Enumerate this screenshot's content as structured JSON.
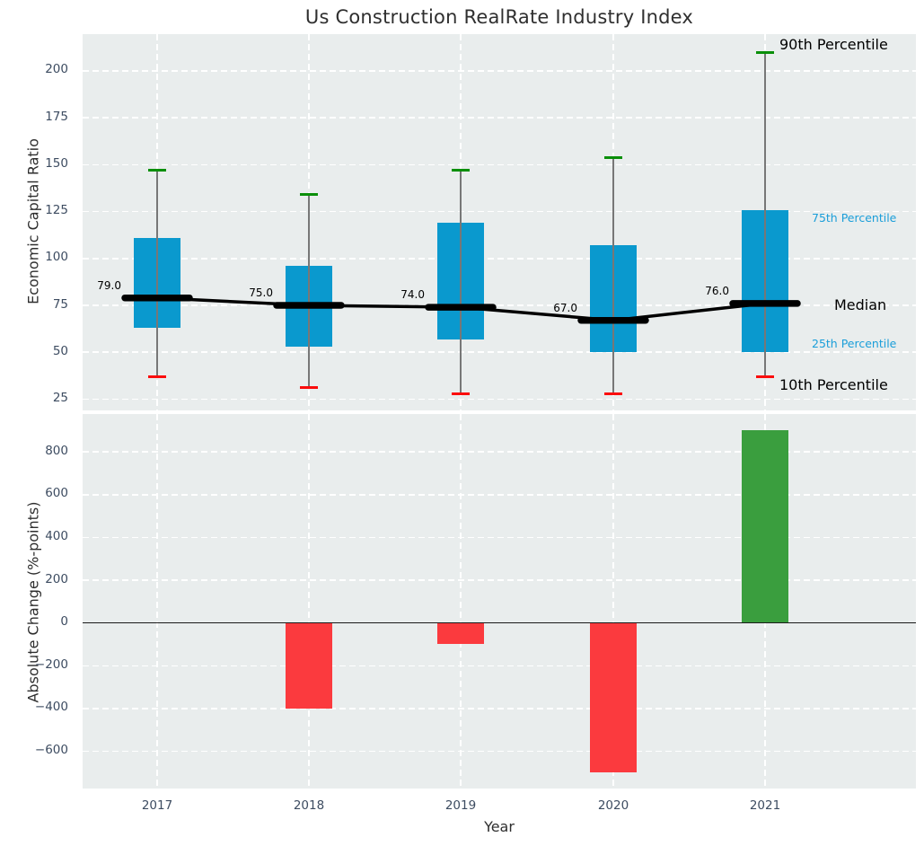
{
  "title": "Us Construction RealRate Industry Index",
  "colors": {
    "panel_bg": "#e9eded",
    "box_fill": "#0a99ce",
    "whisker": "#777777",
    "cap_high": "#0a8f0a",
    "cap_low": "#fb0d0d",
    "median_line": "#000000",
    "bar_positive": "#3a9e3e",
    "bar_negative": "#fb3a3e",
    "tick_text": "#3d4c61",
    "annotation_blue": "#1a9ed9",
    "annotation_black": "#000000",
    "zero_line": "#1a1a1a",
    "gridline": "#ffffff"
  },
  "chart_data": [
    {
      "type": "boxplot-timeseries",
      "title": "Us Construction RealRate Industry Index",
      "ylabel": "Economic Capital Ratio",
      "categories": [
        "2017",
        "2018",
        "2019",
        "2020",
        "2021"
      ],
      "ylim": [
        19,
        219.6
      ],
      "yticks": [
        200,
        175,
        150,
        125,
        100,
        75,
        50,
        25
      ],
      "ytick_labels": [
        "200",
        "175",
        "150",
        "125",
        "100",
        "75",
        "50",
        "25"
      ],
      "grid": true,
      "legend_position": "right-annotations",
      "series": [
        {
          "name": "90th Percentile",
          "values": [
            147,
            134,
            147,
            154,
            210
          ]
        },
        {
          "name": "75th Percentile",
          "values": [
            111,
            96,
            119,
            107,
            126
          ]
        },
        {
          "name": "Median",
          "values": [
            79,
            75,
            74,
            67,
            76
          ]
        },
        {
          "name": "25th Percentile",
          "values": [
            63,
            53,
            57,
            50,
            50
          ]
        },
        {
          "name": "10th Percentile",
          "values": [
            37,
            31,
            28,
            28,
            37
          ]
        }
      ],
      "median_labels": [
        "79.0",
        "75.0",
        "74.0",
        "67.0",
        "76.0"
      ],
      "annotations": [
        {
          "label": "90th Percentile",
          "size": "large",
          "color": "#000000"
        },
        {
          "label": "75th Percentile",
          "size": "small",
          "color": "#1a9ed9"
        },
        {
          "label": "Median",
          "size": "large",
          "color": "#000000"
        },
        {
          "label": "25th Percentile",
          "size": "small",
          "color": "#1a9ed9"
        },
        {
          "label": "10th Percentile",
          "size": "large",
          "color": "#000000"
        }
      ]
    },
    {
      "type": "bar",
      "ylabel": "Absolute Change (%-points)",
      "xlabel": "Year",
      "categories": [
        "2017",
        "2018",
        "2019",
        "2020",
        "2021"
      ],
      "values": [
        0,
        -400,
        -100,
        -700,
        900
      ],
      "ylim": [
        -774,
        977
      ],
      "yticks": [
        800,
        600,
        400,
        200,
        0,
        -200,
        -400,
        -600
      ],
      "ytick_labels": [
        "800",
        "600",
        "400",
        "200",
        "0",
        "−200",
        "−400",
        "−600"
      ],
      "grid": true
    }
  ]
}
